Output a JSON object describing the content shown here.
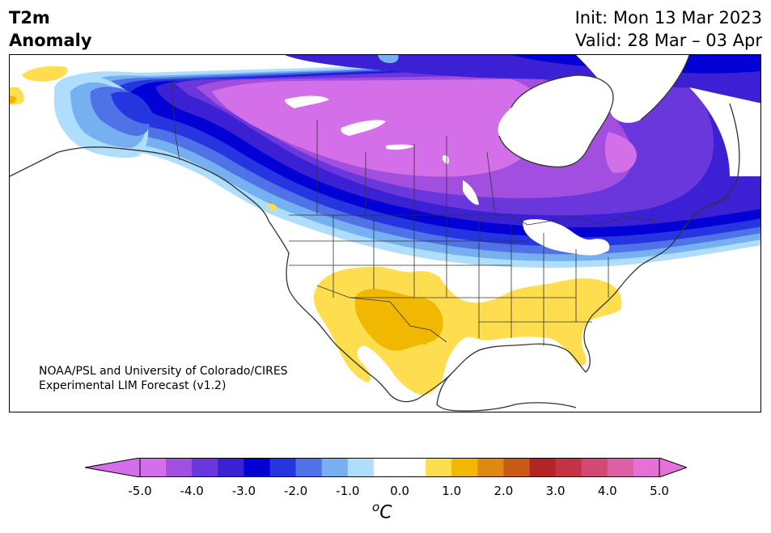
{
  "title": {
    "left_line1": "T2m",
    "left_line2": "Anomaly",
    "init": "Init: Mon 13 Mar 2023",
    "valid": "Valid: 28 Mar – 03 Apr"
  },
  "credit": {
    "line1": "NOAA/PSL and University of Colorado/CIRES",
    "line2": "Experimental LIM Forecast (v1.2)"
  },
  "colorbar": {
    "unit_base": "C",
    "unit_sup": "o",
    "ticks": [
      "-5.0",
      "-4.0",
      "-3.0",
      "-2.0",
      "-1.0",
      "0.0",
      "1.0",
      "2.0",
      "3.0",
      "4.0",
      "5.0"
    ],
    "colors": [
      "#d36fe8",
      "#a24fe0",
      "#6a37dc",
      "#3c20d4",
      "#0200d4",
      "#2536e0",
      "#4f72e6",
      "#77b0f0",
      "#aedefb",
      "#ffffff",
      "#ffffff",
      "#fede4e",
      "#f1b800",
      "#de8910",
      "#c85a14",
      "#b32424",
      "#c33245",
      "#d24a72",
      "#dd5fa5",
      "#e571d8"
    ],
    "under_color": "#d36fe8",
    "over_color": "#e571d8"
  },
  "map": {
    "colors": {
      "c5": "#d36fe8",
      "c4": "#a24fe0",
      "c35": "#6a37dc",
      "c3": "#3c20d4",
      "c25": "#0200d4",
      "c2": "#2536e0",
      "c15": "#4f72e6",
      "c1": "#77b0f0",
      "c05": "#aedefb",
      "w1": "#fede4e",
      "w2": "#f1b800",
      "border": "#333333"
    }
  }
}
